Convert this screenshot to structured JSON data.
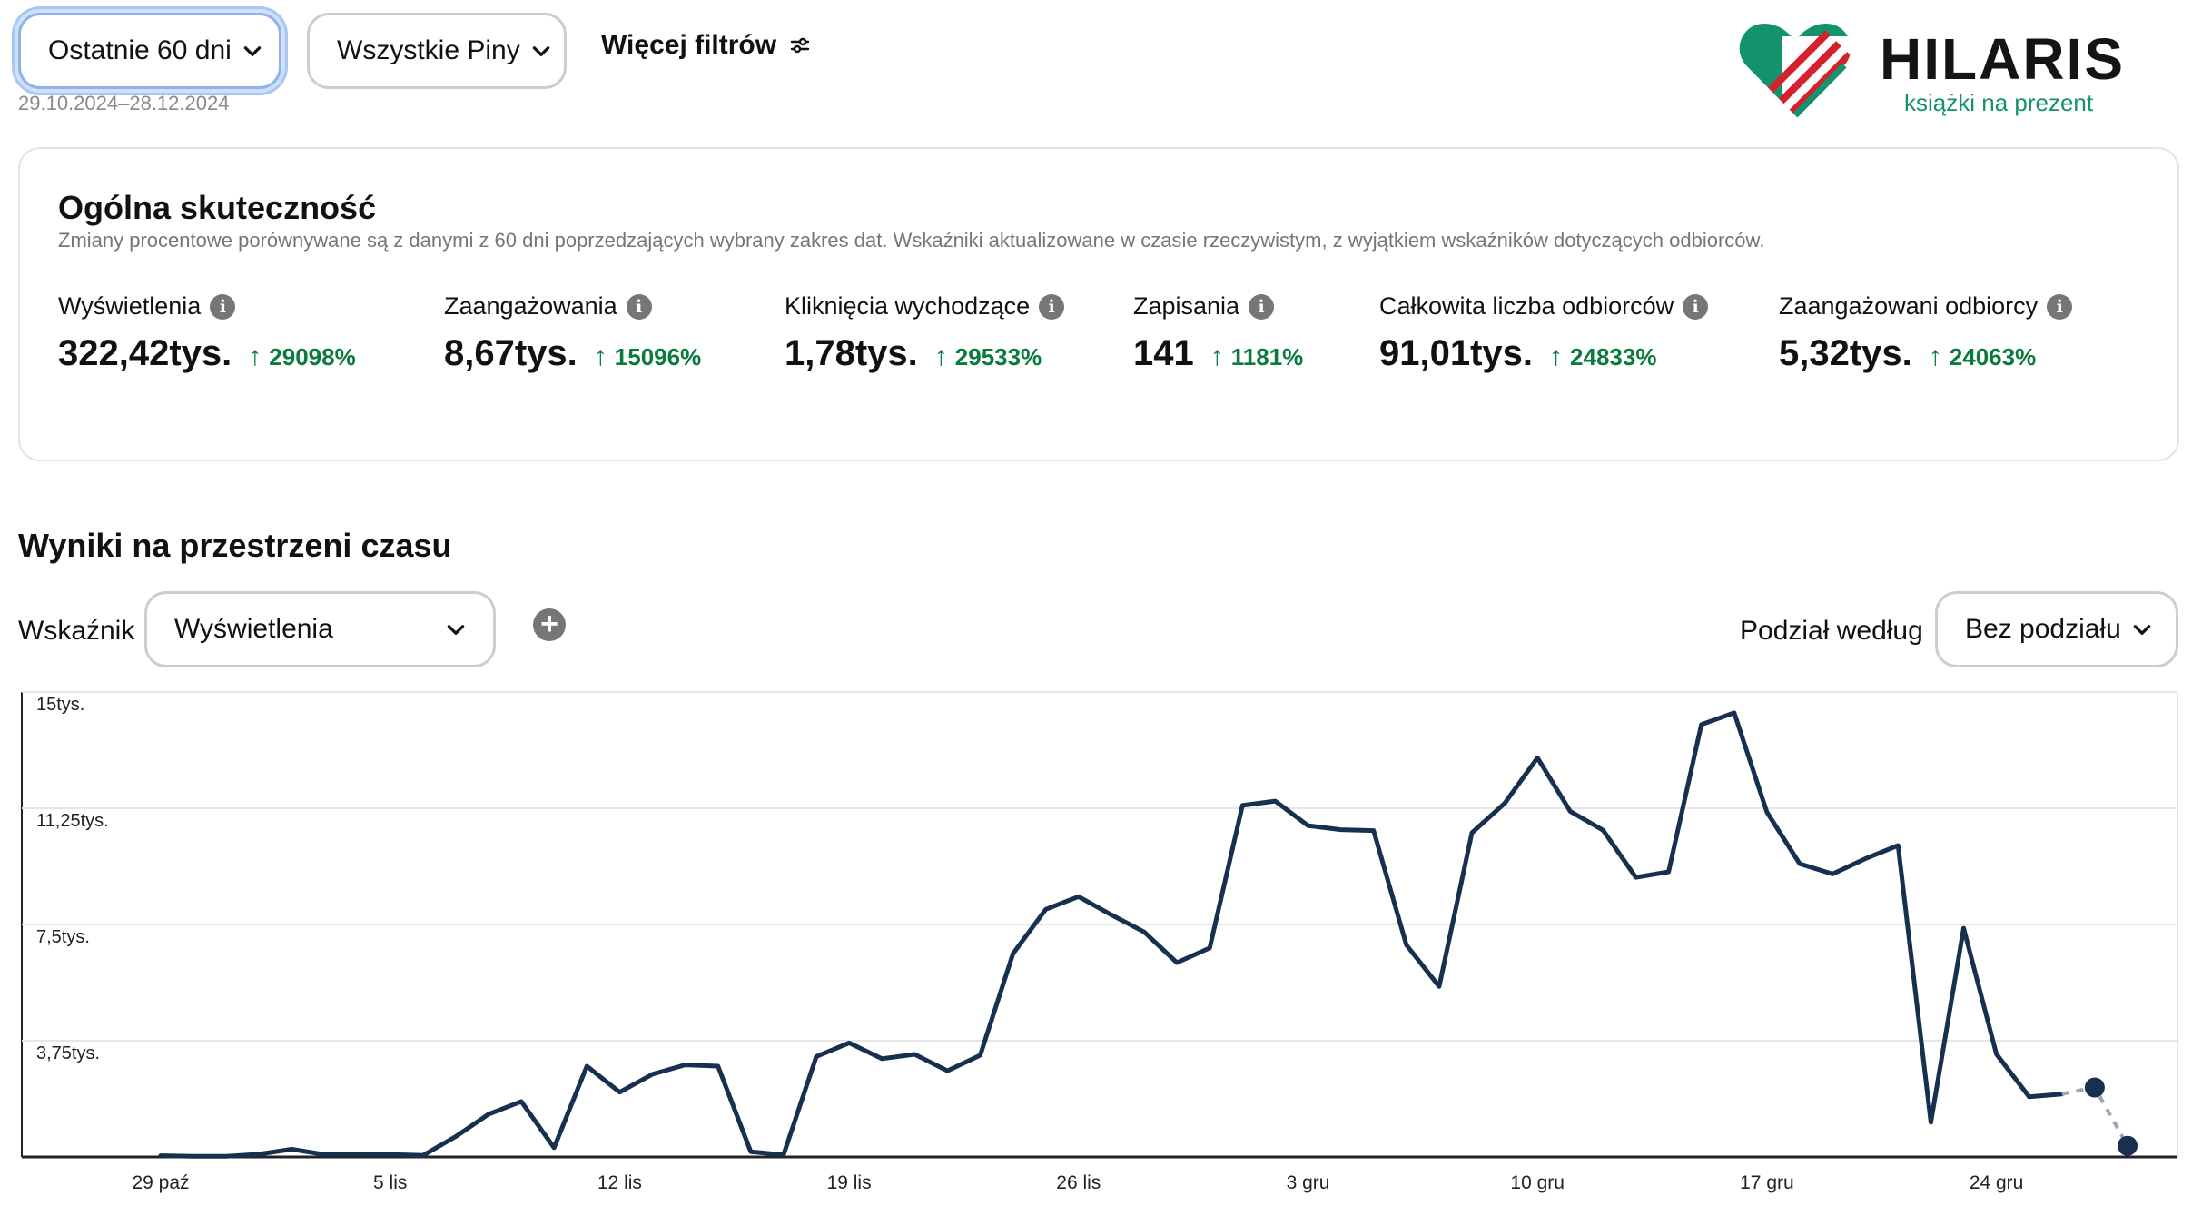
{
  "filters": {
    "date_preset": "Ostatnie 60 dni",
    "pins_filter": "Wszystkie Piny",
    "more_filters": "Więcej filtrów",
    "date_range": "29.10.2024–28.12.2024"
  },
  "logo": {
    "name": "HILARIS",
    "tagline": "książki na prezent"
  },
  "overview": {
    "title": "Ogólna skuteczność",
    "subtitle": "Zmiany procentowe porównywane są z danymi z 60 dni poprzedzających wybrany zakres dat. Wskaźniki aktualizowane w czasie rzeczywistym, z wyjątkiem wskaźników dotyczących odbiorców.",
    "metrics": [
      {
        "label": "Wyświetlenia",
        "value": "322,42tys.",
        "change": "29098%"
      },
      {
        "label": "Zaangażowania",
        "value": "8,67tys.",
        "change": "15096%"
      },
      {
        "label": "Kliknięcia wychodzące",
        "value": "1,78tys.",
        "change": "29533%"
      },
      {
        "label": "Zapisania",
        "value": "141",
        "change": "1181%"
      },
      {
        "label": "Całkowita liczba odbiorców",
        "value": "91,01tys.",
        "change": "24833%"
      },
      {
        "label": "Zaangażowani odbiorcy",
        "value": "5,32tys.",
        "change": "24063%"
      }
    ]
  },
  "results": {
    "title": "Wyniki na przestrzeni czasu",
    "metric_label": "Wskaźnik",
    "metric_value": "Wyświetlenia",
    "split_label": "Podział według",
    "split_value": "Bez podziału"
  },
  "colors": {
    "line": "#17304f",
    "positive": "#0a7b3c",
    "focus": "#a9c6f5",
    "brand_green": "#12936d",
    "brand_red": "#d3222e"
  },
  "chart_data": {
    "type": "line",
    "ylim": [
      0,
      15000
    ],
    "y_ticks": [
      {
        "value": 3750,
        "label": "3,75tys."
      },
      {
        "value": 7500,
        "label": "7,5tys."
      },
      {
        "value": 11250,
        "label": "11,25tys."
      },
      {
        "value": 15000,
        "label": "15tys."
      }
    ],
    "x_ticks": [
      "29 paź",
      "5 lis",
      "12 lis",
      "19 lis",
      "26 lis",
      "3 gru",
      "10 gru",
      "17 gru",
      "24 gru"
    ],
    "grid": true,
    "series": [
      {
        "values": [
          40,
          20,
          20,
          90,
          250,
          80,
          100,
          80,
          50,
          660,
          1380,
          1790,
          300,
          2930,
          2090,
          2670,
          2970,
          2930,
          170,
          70,
          3240,
          3680,
          3170,
          3310,
          2780,
          3280,
          6560,
          7990,
          8400,
          7810,
          7260,
          6270,
          6740,
          11340,
          11480,
          10690,
          10560,
          10530,
          6840,
          5500,
          10460,
          11410,
          12880,
          11150,
          10540,
          9020,
          9200,
          13950,
          14330,
          11120,
          9460,
          9130,
          9620,
          10050,
          1120,
          7380,
          3320,
          1940,
          2030
        ],
        "partial_values": [
          2240,
          360
        ]
      }
    ]
  }
}
